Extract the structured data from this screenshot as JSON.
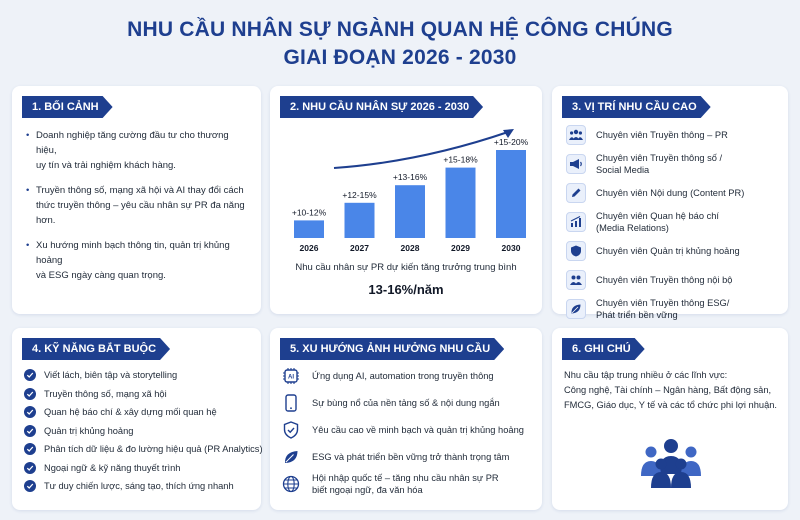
{
  "title": {
    "line1": "NHU CẦU NHÂN SỰ NGÀNH QUAN HỆ CÔNG CHÚNG",
    "line2": "GIAI ĐOẠN 2026 - 2030"
  },
  "colors": {
    "primary": "#1e3f8f",
    "bar": "#4a86e8",
    "background": "#eef2f8"
  },
  "section1": {
    "heading": "1. BỐI CẢNH",
    "bullets": [
      {
        "l1": "Doanh nghiệp tăng cường đầu tư cho thương hiệu,",
        "l2": "uy tín và trải nghiệm khách hàng."
      },
      {
        "l1": "Truyền thông số, mạng xã hội và AI thay đổi cách",
        "l2": "thức truyền thông – yêu cầu nhân sự PR đa năng hơn."
      },
      {
        "l1": "Xu hướng minh bạch thông tin, quản trị khủng hoảng",
        "l2": "và ESG ngày càng quan trọng."
      }
    ]
  },
  "section2": {
    "heading": "2. NHU CẦU NHÂN SỰ 2026 - 2030",
    "caption": "Nhu cầu nhân sự PR dự kiến tăng trưởng trung bình",
    "highlight": "13-16%/năm"
  },
  "chart_data": {
    "type": "bar",
    "categories": [
      "2026",
      "2027",
      "2028",
      "2029",
      "2030"
    ],
    "values": [
      1,
      2,
      3,
      4,
      5
    ],
    "labels": [
      "+10-12%",
      "+12-15%",
      "+13-16%",
      "+15-18%",
      "+15-20%"
    ],
    "title": "",
    "xlabel": "",
    "ylabel": "",
    "trend_arrow": true,
    "grid": false
  },
  "section3": {
    "heading": "3. VỊ TRÍ NHU CẦU CAO",
    "items": [
      {
        "icon": "team-icon",
        "l1": "Chuyên viên Truyền thông – PR",
        "l2": ""
      },
      {
        "icon": "megaphone-icon",
        "l1": "Chuyên viên Truyền thông số /",
        "l2": "Social Media"
      },
      {
        "icon": "pencil-icon",
        "l1": "Chuyên viên Nội dung (Content PR)",
        "l2": ""
      },
      {
        "icon": "bar-chart-icon",
        "l1": "Chuyên viên Quan hệ báo chí",
        "l2": "(Media Relations)"
      },
      {
        "icon": "shield-icon",
        "l1": "Chuyên viên Quản trị khủng hoảng",
        "l2": ""
      },
      {
        "icon": "people-icon",
        "l1": "Chuyên viên Truyền thông nội bộ",
        "l2": ""
      },
      {
        "icon": "leaf-icon",
        "l1": "Chuyên viên Truyền thông ESG/",
        "l2": "Phát triển bền vững"
      }
    ]
  },
  "section4": {
    "heading": "4. KỸ NĂNG BẮT BUỘC",
    "items": [
      "Viết lách, biên tập và storytelling",
      "Truyền thông số, mạng xã hội",
      "Quan hệ báo chí & xây dựng mối quan hệ",
      "Quản trị khủng hoảng",
      "Phân tích dữ liệu & đo lường hiệu quả (PR Analytics)",
      "Ngoại ngữ & kỹ năng thuyết trình",
      "Tư duy chiến lược, sáng tạo, thích ứng nhanh"
    ]
  },
  "section5": {
    "heading": "5. XU HƯỚNG ẢNH HƯỞNG NHU CẦU",
    "ai_glyph": "AI",
    "items": [
      {
        "icon": "ai-chip-icon",
        "l1": "Ứng dụng AI, automation trong truyền thông",
        "l2": ""
      },
      {
        "icon": "smartphone-icon",
        "l1": "Sự bùng nổ của nền tảng số & nội dung ngắn",
        "l2": ""
      },
      {
        "icon": "shield-check-icon",
        "l1": "Yêu cầu cao về minh bạch và quản trị khủng hoảng",
        "l2": ""
      },
      {
        "icon": "leaf-icon",
        "l1": "ESG và phát triển bền vững trở thành trọng tâm",
        "l2": ""
      },
      {
        "icon": "globe-icon",
        "l1": "Hội nhập quốc tế – tăng nhu cầu nhân sự PR",
        "l2": "biết ngoại ngữ, đa văn hóa"
      }
    ]
  },
  "section6": {
    "heading": "6. GHI CHÚ",
    "lines": [
      "Nhu cầu tập trung nhiều ở các lĩnh vực:",
      "Công nghệ, Tài chính – Ngân hàng, Bất động sản,",
      "FMCG, Giáo dục, Y tế và các tổ chức phi lợi nhuận."
    ],
    "icon": "group-icon"
  }
}
